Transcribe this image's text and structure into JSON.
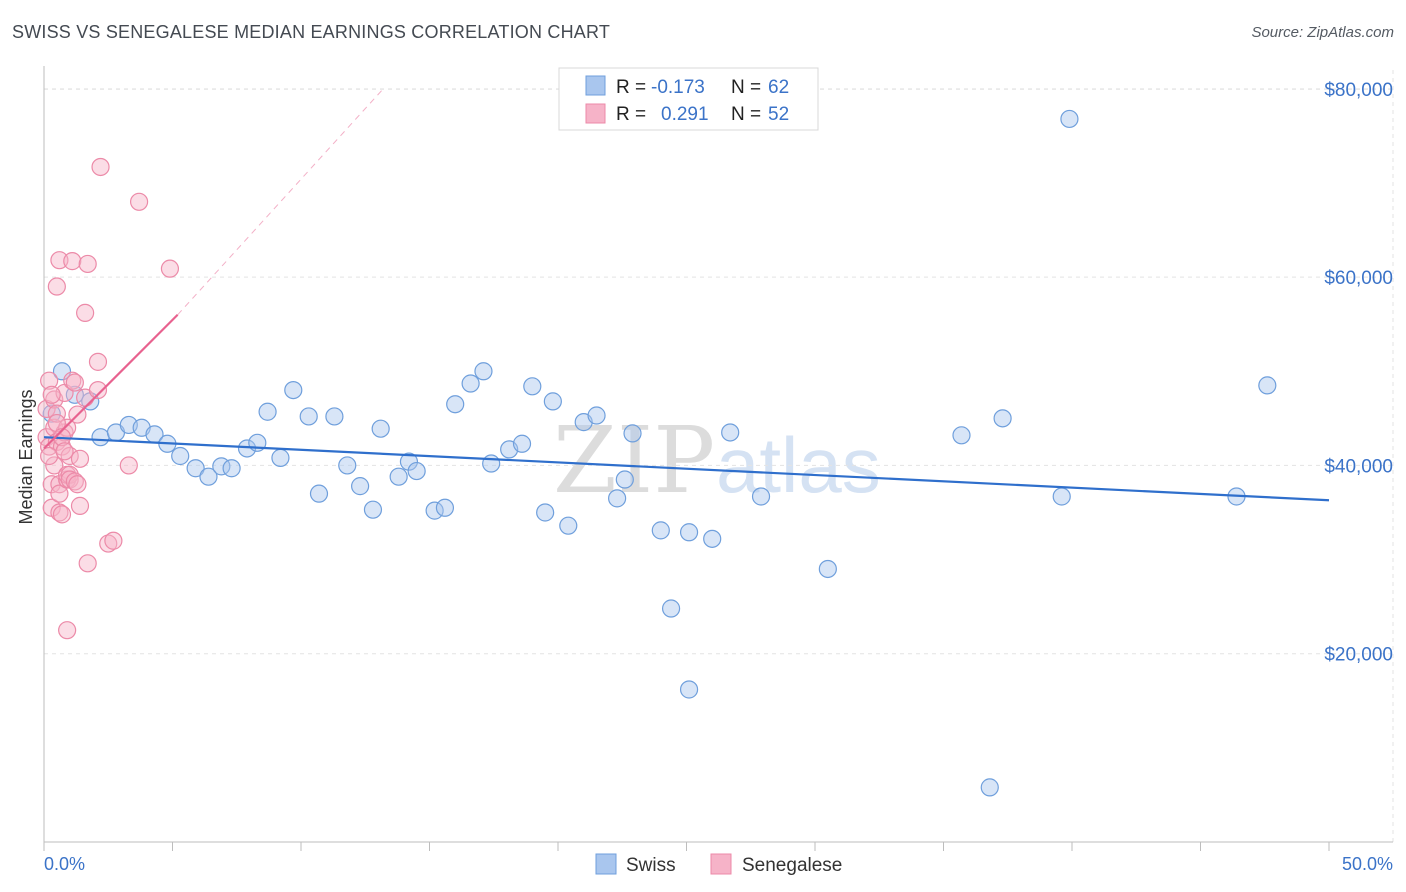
{
  "header": {
    "title": "SWISS VS SENEGALESE MEDIAN EARNINGS CORRELATION CHART",
    "source": "Source: ZipAtlas.com"
  },
  "watermark": {
    "zip": "ZIP",
    "atlas": "atlas"
  },
  "legend": {
    "rows": [
      {
        "r_label": "R =",
        "r_value": "-0.173",
        "n_label": "N =",
        "n_value": "62",
        "color": "#a9c6ee"
      },
      {
        "r_label": "R =",
        "r_value": "0.291",
        "n_label": "N =",
        "n_value": "52",
        "color": "#f6b3c8"
      }
    ]
  },
  "bottom_legend": [
    {
      "label": "Swiss",
      "color": "#a9c6ee"
    },
    {
      "label": "Senegalese",
      "color": "#f6b3c8"
    }
  ],
  "chart_data": {
    "type": "scatter",
    "title": "SWISS VS SENEGALESE MEDIAN EARNINGS CORRELATION CHART",
    "xlabel": "",
    "ylabel": "Median Earnings",
    "xlim": [
      0,
      50
    ],
    "ylim": [
      0,
      82000
    ],
    "x_tick_labels": [
      "0.0%",
      "50.0%"
    ],
    "y_ticks": [
      {
        "value": 20000,
        "label": "$20,000"
      },
      {
        "value": 40000,
        "label": "$40,000"
      },
      {
        "value": 60000,
        "label": "$60,000"
      },
      {
        "value": 80000,
        "label": "$80,000"
      }
    ],
    "grid": true,
    "legend_position": "top-center",
    "series": [
      {
        "name": "Swiss",
        "color": "#a9c6ee",
        "stroke": "#6f9fdc",
        "trend": {
          "x": [
            0,
            50
          ],
          "y": [
            43000,
            36300
          ],
          "color": "#2f6fcc"
        },
        "points": [
          [
            0.3,
            45500
          ],
          [
            0.7,
            50000
          ],
          [
            1.2,
            47500
          ],
          [
            1.8,
            46800
          ],
          [
            2.2,
            43000
          ],
          [
            2.8,
            43500
          ],
          [
            3.3,
            44300
          ],
          [
            3.8,
            44000
          ],
          [
            4.3,
            43300
          ],
          [
            4.8,
            42300
          ],
          [
            5.3,
            41000
          ],
          [
            5.9,
            39700
          ],
          [
            6.4,
            38800
          ],
          [
            6.9,
            39900
          ],
          [
            7.3,
            39700
          ],
          [
            7.9,
            41800
          ],
          [
            8.3,
            42400
          ],
          [
            8.7,
            45700
          ],
          [
            9.2,
            40800
          ],
          [
            9.7,
            48000
          ],
          [
            10.3,
            45200
          ],
          [
            10.7,
            37000
          ],
          [
            11.3,
            45200
          ],
          [
            11.8,
            40000
          ],
          [
            12.3,
            37800
          ],
          [
            12.8,
            35300
          ],
          [
            13.1,
            43900
          ],
          [
            13.8,
            38800
          ],
          [
            14.2,
            40400
          ],
          [
            14.5,
            39400
          ],
          [
            15.2,
            35200
          ],
          [
            15.6,
            35500
          ],
          [
            16.0,
            46500
          ],
          [
            16.6,
            48700
          ],
          [
            17.1,
            50000
          ],
          [
            17.4,
            40200
          ],
          [
            18.1,
            41700
          ],
          [
            18.6,
            42300
          ],
          [
            19.0,
            48400
          ],
          [
            19.5,
            35000
          ],
          [
            19.8,
            46800
          ],
          [
            20.4,
            33600
          ],
          [
            21.0,
            44600
          ],
          [
            21.5,
            45300
          ],
          [
            22.3,
            36500
          ],
          [
            22.6,
            38500
          ],
          [
            22.9,
            43400
          ],
          [
            24.0,
            33100
          ],
          [
            24.4,
            24800
          ],
          [
            25.1,
            32900
          ],
          [
            25.1,
            16200
          ],
          [
            26.0,
            32200
          ],
          [
            26.7,
            43500
          ],
          [
            27.9,
            36700
          ],
          [
            30.5,
            29000
          ],
          [
            35.7,
            43200
          ],
          [
            36.8,
            5800
          ],
          [
            37.3,
            45000
          ],
          [
            39.6,
            36700
          ],
          [
            39.9,
            76800
          ],
          [
            46.4,
            36700
          ],
          [
            47.6,
            48500
          ]
        ]
      },
      {
        "name": "Senegalese",
        "color": "#f6b3c8",
        "stroke": "#ec8aa8",
        "trend": {
          "x": [
            0,
            5.2
          ],
          "y": [
            41800,
            56000
          ],
          "color": "#e8628f",
          "dashed_to": [
            13.2,
            80000
          ]
        },
        "points": [
          [
            0.1,
            43000
          ],
          [
            0.1,
            46000
          ],
          [
            0.2,
            49000
          ],
          [
            0.2,
            42000
          ],
          [
            0.3,
            38000
          ],
          [
            0.3,
            35500
          ],
          [
            0.4,
            40000
          ],
          [
            0.4,
            44000
          ],
          [
            0.4,
            47000
          ],
          [
            0.5,
            45500
          ],
          [
            0.5,
            42500
          ],
          [
            0.5,
            59000
          ],
          [
            0.6,
            38000
          ],
          [
            0.6,
            37000
          ],
          [
            0.6,
            35000
          ],
          [
            0.6,
            61800
          ],
          [
            0.7,
            34800
          ],
          [
            0.7,
            42000
          ],
          [
            0.8,
            43500
          ],
          [
            0.8,
            47700
          ],
          [
            0.9,
            44000
          ],
          [
            0.9,
            38500
          ],
          [
            0.9,
            39000
          ],
          [
            0.9,
            22500
          ],
          [
            1.0,
            39000
          ],
          [
            1.0,
            38500
          ],
          [
            1.0,
            41000
          ],
          [
            1.1,
            49000
          ],
          [
            1.1,
            61700
          ],
          [
            1.2,
            48800
          ],
          [
            1.2,
            38300
          ],
          [
            1.3,
            45400
          ],
          [
            1.3,
            38000
          ],
          [
            1.4,
            40700
          ],
          [
            1.4,
            35700
          ],
          [
            1.6,
            47200
          ],
          [
            1.6,
            56200
          ],
          [
            1.7,
            61400
          ],
          [
            1.7,
            29600
          ],
          [
            2.1,
            51000
          ],
          [
            2.1,
            48000
          ],
          [
            2.2,
            71700
          ],
          [
            2.5,
            31700
          ],
          [
            2.7,
            32000
          ],
          [
            3.3,
            40000
          ],
          [
            3.7,
            68000
          ],
          [
            4.9,
            60900
          ],
          [
            0.2,
            41000
          ],
          [
            0.3,
            47500
          ],
          [
            0.5,
            44500
          ],
          [
            0.7,
            43000
          ],
          [
            0.8,
            41500
          ]
        ]
      }
    ]
  }
}
